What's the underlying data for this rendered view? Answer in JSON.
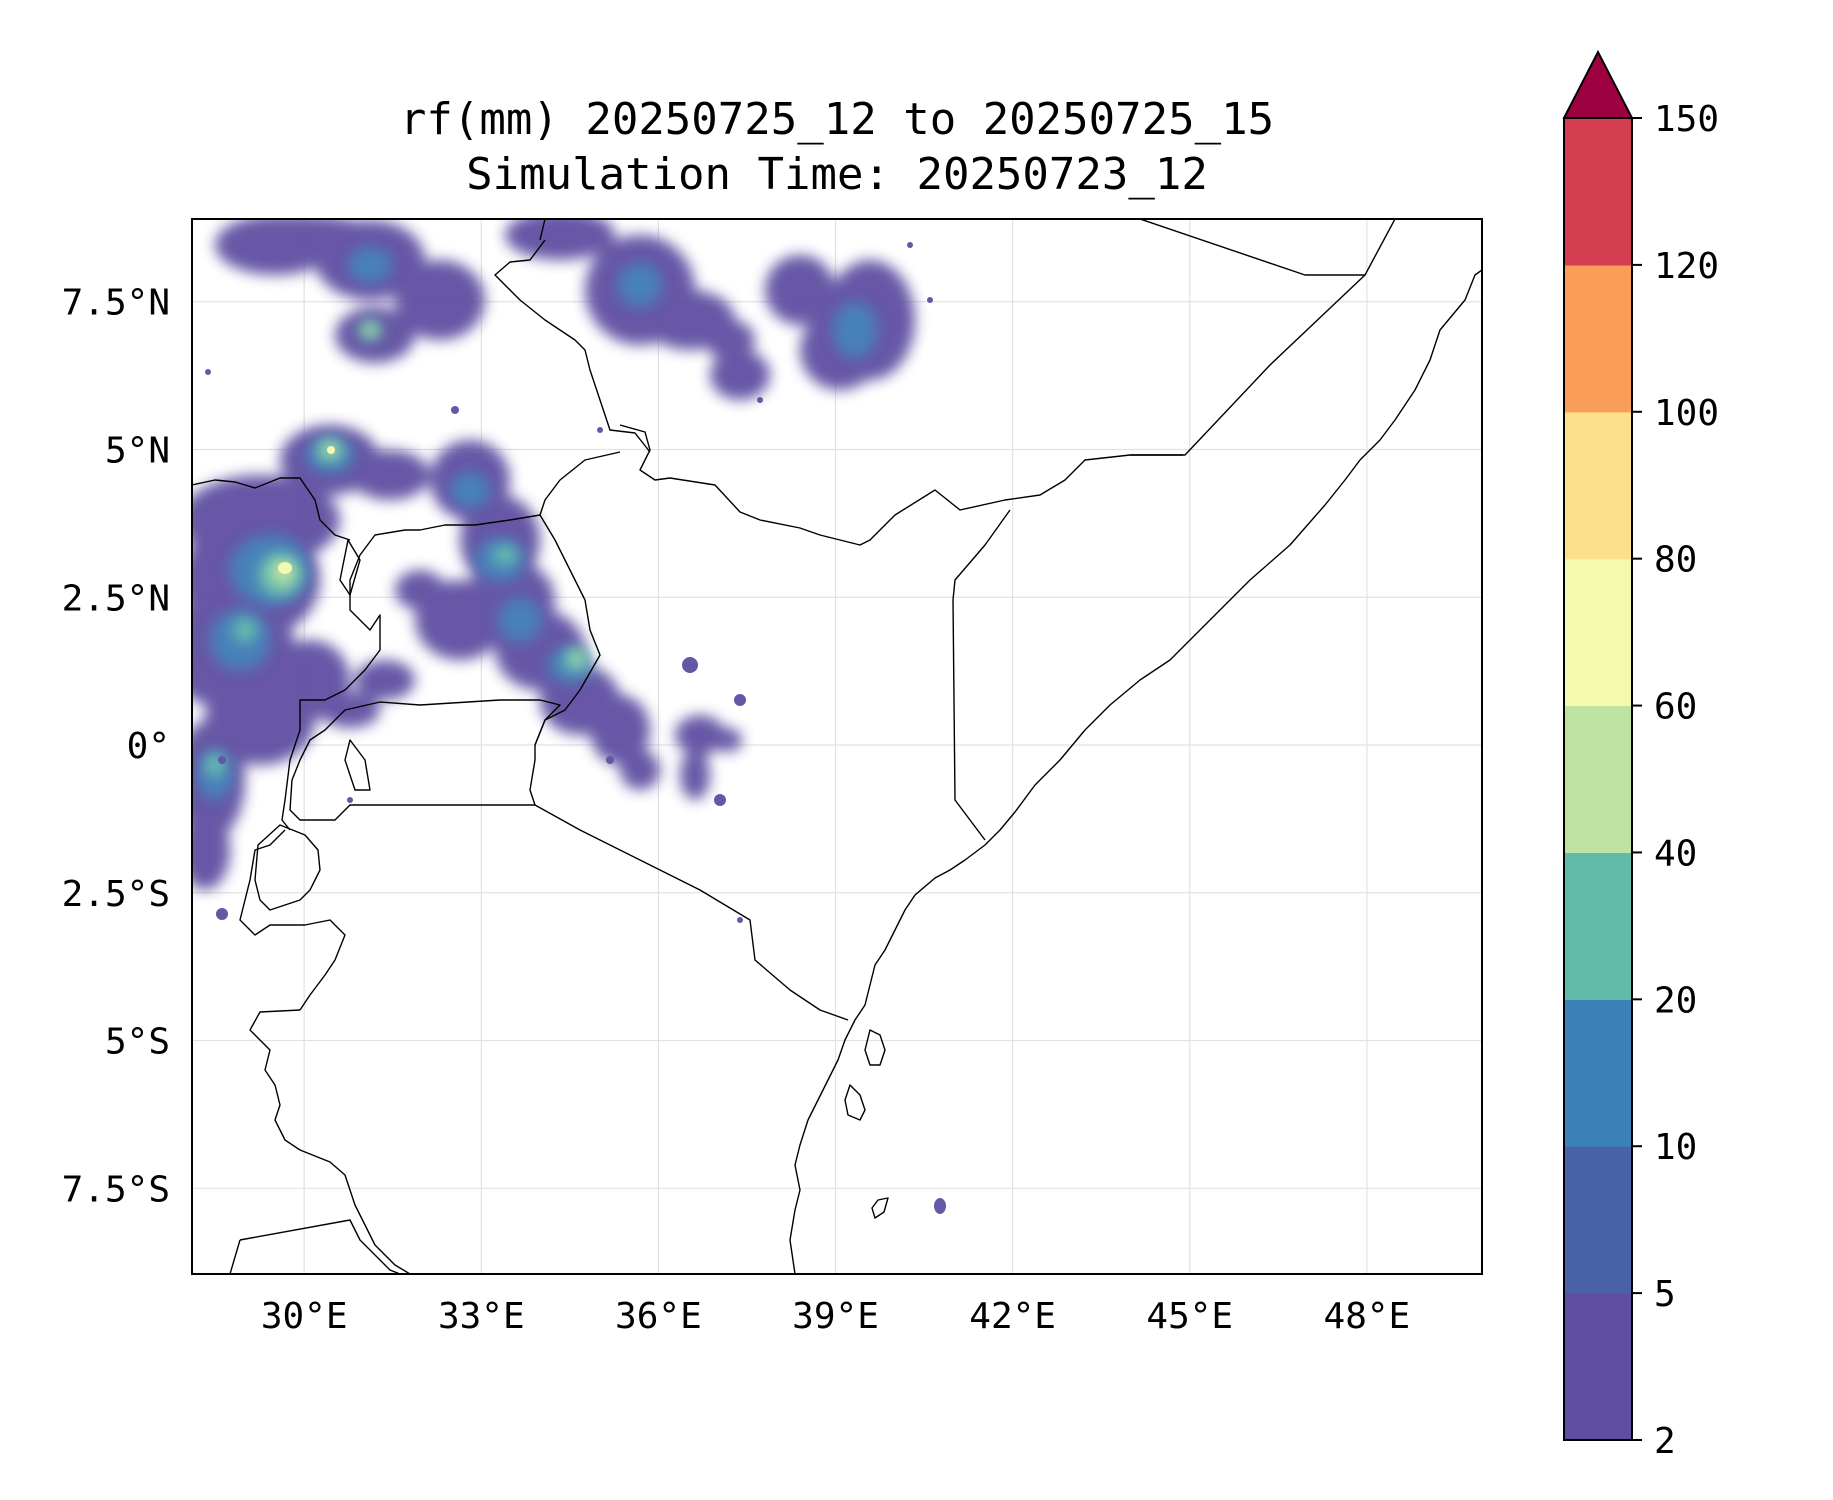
{
  "title": {
    "line1": "rf(mm) 20250725_12 to 20250725_15",
    "line2": "Simulation Time: 20250723_12"
  },
  "map": {
    "extent": {
      "lon": [
        28.1,
        49.95
      ],
      "lat": [
        -8.95,
        8.9
      ]
    },
    "lon_ticks": [
      {
        "value": 30,
        "label": "30°E"
      },
      {
        "value": 33,
        "label": "33°E"
      },
      {
        "value": 36,
        "label": "36°E"
      },
      {
        "value": 39,
        "label": "39°E"
      },
      {
        "value": 42,
        "label": "42°E"
      },
      {
        "value": 45,
        "label": "45°E"
      },
      {
        "value": 48,
        "label": "48°E"
      }
    ],
    "lat_ticks": [
      {
        "value": 7.5,
        "label": "7.5°N"
      },
      {
        "value": 5,
        "label": "5°N"
      },
      {
        "value": 2.5,
        "label": "2.5°N"
      },
      {
        "value": 0,
        "label": "0°"
      },
      {
        "value": -2.5,
        "label": "2.5°S"
      },
      {
        "value": -5,
        "label": "5°S"
      },
      {
        "value": -7.5,
        "label": "7.5°S"
      }
    ],
    "grid": true
  },
  "colorbar": {
    "levels": [
      "2",
      "5",
      "10",
      "20",
      "40",
      "60",
      "80",
      "100",
      "120",
      "150"
    ],
    "colors": [
      "#5e4fa2",
      "#4a62aa",
      "#3a80b9",
      "#60bba9",
      "#bee3a0",
      "#f4f9ad",
      "#fcdf8b",
      "#f99d59",
      "#d43d4f"
    ],
    "extend_max_color": "#9e0142"
  },
  "chart_data": {
    "type": "heatmap",
    "variable": "rf(mm)",
    "period": "20250725_12 to 20250725_15",
    "simulation_time": "20250723_12",
    "rain_areas": [
      {
        "lon": 31.2,
        "lat": 7.9,
        "max_mm": 20
      },
      {
        "lon": 35.6,
        "lat": 7.8,
        "max_mm": 20
      },
      {
        "lon": 39.2,
        "lat": 7.4,
        "max_mm": 20
      },
      {
        "lon": 31.0,
        "lat": 7.0,
        "max_mm": 40
      },
      {
        "lon": 30.5,
        "lat": 5.0,
        "max_mm": 60
      },
      {
        "lon": 29.6,
        "lat": 3.0,
        "max_mm": 80
      },
      {
        "lon": 33.2,
        "lat": 3.5,
        "max_mm": 40
      },
      {
        "lon": 34.3,
        "lat": 1.5,
        "max_mm": 60
      },
      {
        "lon": 34.9,
        "lat": 0.8,
        "max_mm": 20
      },
      {
        "lon": 37.0,
        "lat": 0.0,
        "max_mm": 10
      },
      {
        "lon": 28.6,
        "lat": -0.3,
        "max_mm": 40
      }
    ]
  }
}
